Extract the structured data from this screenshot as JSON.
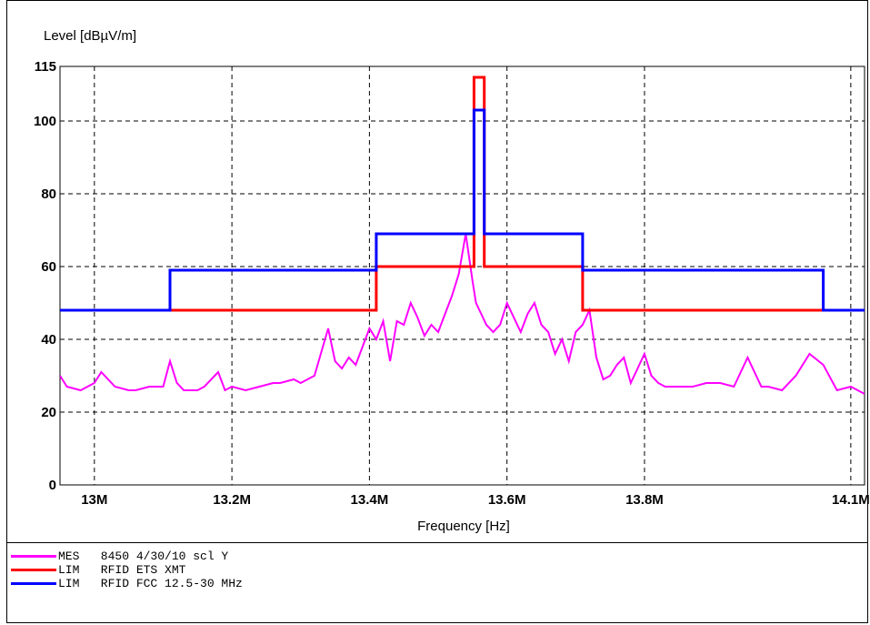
{
  "chart_data": {
    "type": "line",
    "ylabel": "Level [dBµV/m]",
    "xlabel": "Frequency [Hz]",
    "xlim": [
      12.95,
      14.12
    ],
    "ylim": [
      0,
      115
    ],
    "x_ticks": [
      {
        "value": 13.0,
        "label": "13M"
      },
      {
        "value": 13.2,
        "label": "13.2M"
      },
      {
        "value": 13.4,
        "label": "13.4M"
      },
      {
        "value": 13.6,
        "label": "13.6M"
      },
      {
        "value": 13.8,
        "label": "13.8M"
      },
      {
        "value": 14.1,
        "label": "14.1M"
      }
    ],
    "y_ticks": [
      0,
      20,
      40,
      60,
      80,
      100,
      115
    ],
    "grid": true,
    "series": [
      {
        "name": "MES   8450 4/30/10 scl Y",
        "color": "#ff00ff",
        "x": [
          12.95,
          12.96,
          12.98,
          13.0,
          13.01,
          13.03,
          13.05,
          13.06,
          13.08,
          13.1,
          13.11,
          13.12,
          13.13,
          13.15,
          13.16,
          13.18,
          13.19,
          13.2,
          13.22,
          13.24,
          13.26,
          13.27,
          13.29,
          13.3,
          13.32,
          13.34,
          13.35,
          13.36,
          13.37,
          13.38,
          13.4,
          13.41,
          13.42,
          13.43,
          13.44,
          13.45,
          13.46,
          13.47,
          13.48,
          13.49,
          13.5,
          13.51,
          13.52,
          13.53,
          13.54,
          13.55,
          13.555,
          13.56,
          13.565,
          13.57,
          13.58,
          13.59,
          13.6,
          13.61,
          13.62,
          13.63,
          13.64,
          13.65,
          13.66,
          13.67,
          13.68,
          13.69,
          13.7,
          13.71,
          13.72,
          13.73,
          13.74,
          13.75,
          13.76,
          13.77,
          13.78,
          13.79,
          13.8,
          13.81,
          13.82,
          13.83,
          13.84,
          13.85,
          13.87,
          13.89,
          13.91,
          13.93,
          13.95,
          13.97,
          13.98,
          14.0,
          14.02,
          14.04,
          14.06,
          14.08,
          14.1,
          14.12
        ],
        "values": [
          30,
          27,
          26,
          28,
          31,
          27,
          26,
          26,
          27,
          27,
          34,
          28,
          26,
          26,
          27,
          31,
          26,
          27,
          26,
          27,
          28,
          28,
          29,
          28,
          30,
          43,
          34,
          32,
          35,
          33,
          43,
          40,
          45,
          34,
          45,
          44,
          50,
          46,
          41,
          44,
          42,
          47,
          52,
          58,
          69,
          56,
          50,
          48,
          46,
          44,
          42,
          44,
          50,
          46,
          42,
          47,
          50,
          44,
          42,
          36,
          40,
          34,
          42,
          44,
          48,
          35,
          29,
          30,
          33,
          35,
          28,
          32,
          36,
          30,
          28,
          27,
          27,
          27,
          27,
          28,
          28,
          27,
          35,
          27,
          27,
          26,
          30,
          36,
          33,
          26,
          27,
          25
        ],
        "label_series": false
      },
      {
        "name": "LIM   RFID ETS XMT",
        "color": "#ff0000",
        "x": [
          12.95,
          13.41,
          13.41,
          13.552,
          13.552,
          13.567,
          13.567,
          13.71,
          13.71,
          14.12
        ],
        "values": [
          48,
          48,
          60,
          60,
          112,
          112,
          60,
          60,
          48,
          48
        ]
      },
      {
        "name": "LIM   RFID FCC 12.5-30 MHz",
        "color": "#0000ff",
        "x": [
          12.95,
          13.11,
          13.11,
          13.41,
          13.41,
          13.552,
          13.552,
          13.567,
          13.567,
          13.71,
          13.71,
          14.06,
          14.06,
          14.12
        ],
        "values": [
          48,
          48,
          59,
          59,
          69,
          69,
          103,
          103,
          69,
          69,
          59,
          59,
          48,
          48
        ]
      }
    ],
    "legend": "bottom-left"
  }
}
